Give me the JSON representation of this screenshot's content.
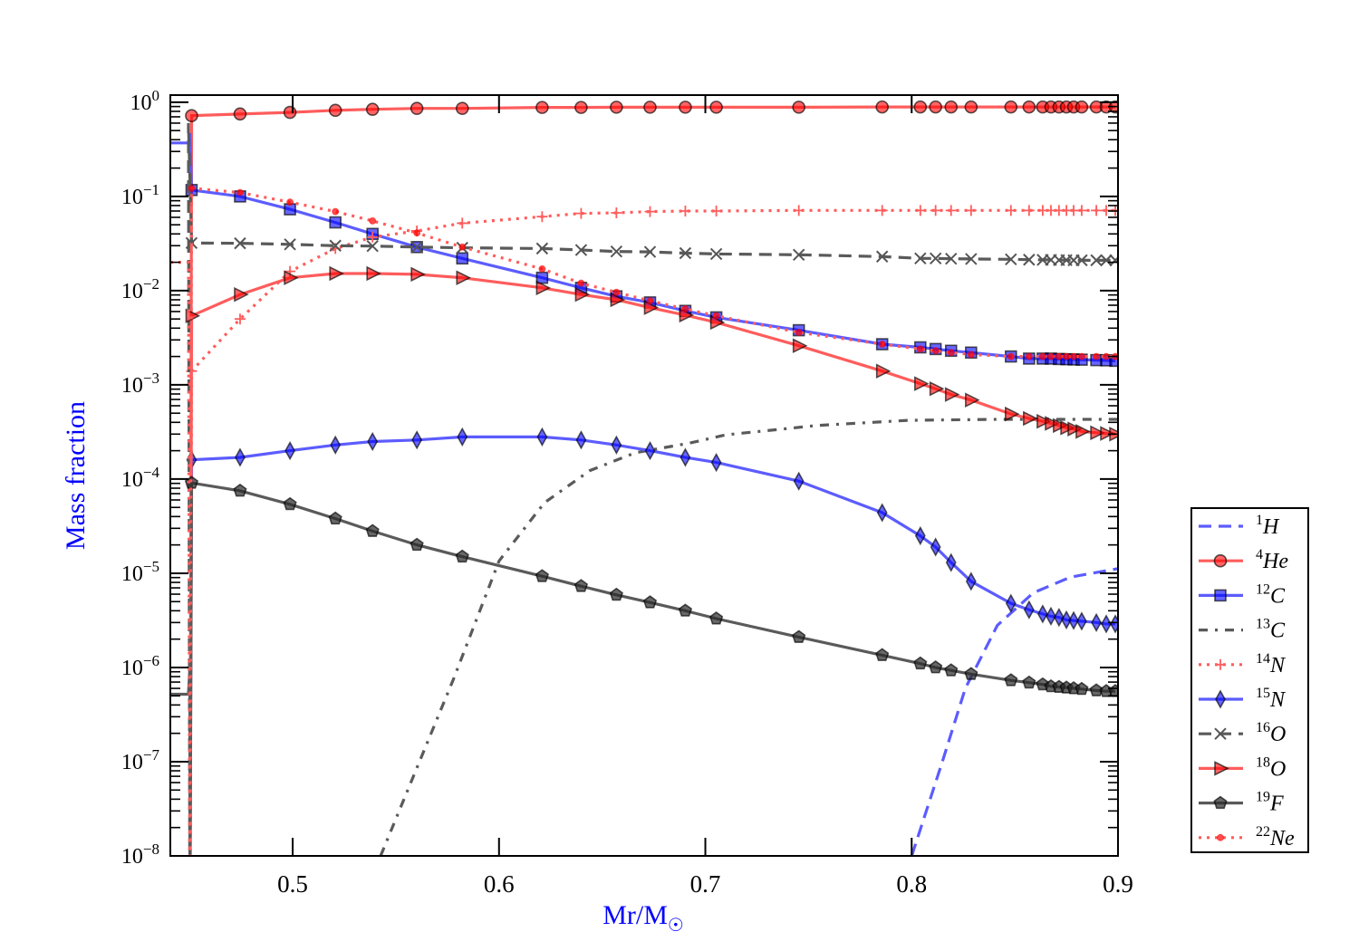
{
  "chart_data": {
    "type": "line",
    "title": "",
    "xlabel": "Mr/M",
    "xlabel_symbol": "☉",
    "ylabel": "Mass fraction",
    "xlim": [
      0.4407,
      0.9
    ],
    "ylim": [
      1e-08,
      1.19
    ],
    "yscale": "log",
    "grid": false,
    "legend_position": "outside-right-bottom",
    "x_ticks": [
      0.5,
      0.6,
      0.7,
      0.8,
      0.9
    ],
    "x_tick_labels": [
      "0.5",
      "0.6",
      "0.7",
      "0.8",
      "0.9"
    ],
    "y_ticks_exp": [
      0,
      -1,
      -2,
      -3,
      -4,
      -5,
      -6,
      -7,
      -8
    ],
    "y_tick_base": "10",
    "y_tick_exponents": [
      "0",
      "−1",
      "−2",
      "−3",
      "−4",
      "−5",
      "−6",
      "−7",
      "−8"
    ],
    "colors": {
      "red": "#ff5c5c",
      "blue": "#5c5cff",
      "grey": "#5a5a5a",
      "axis_label": "#0000ff"
    },
    "marker_x": [
      0.451,
      0.4745,
      0.4987,
      0.5207,
      0.5387,
      0.5602,
      0.5822,
      0.6209,
      0.6398,
      0.6569,
      0.6732,
      0.6903,
      0.7053,
      0.7453,
      0.7857,
      0.8042,
      0.8116,
      0.8191,
      0.8288,
      0.8481,
      0.8569,
      0.8635,
      0.8675,
      0.8714,
      0.875,
      0.8785,
      0.8824,
      0.8895,
      0.8943,
      0.8987
    ],
    "series": [
      {
        "name": "1H",
        "mass": "1",
        "element": "H",
        "color": "blue",
        "dash": "dashed",
        "marker": "none",
        "x": [
          0.8,
          0.815,
          0.826,
          0.8415,
          0.859,
          0.877,
          0.9
        ],
        "y": [
          1e-08,
          1.02e-07,
          6e-07,
          2.8e-06,
          6.2e-06,
          9.1e-06,
          1.12e-05
        ]
      },
      {
        "name": "4He",
        "mass": "4",
        "element": "He",
        "color": "red",
        "dash": "solid",
        "marker": "circle",
        "pre": [
          [
            0.4502,
            1e-09
          ]
        ],
        "y": [
          0.72,
          0.75,
          0.78,
          0.82,
          0.84,
          0.86,
          0.86,
          0.88,
          0.88,
          0.885,
          0.885,
          0.885,
          0.885,
          0.885,
          0.89,
          0.89,
          0.89,
          0.89,
          0.89,
          0.89,
          0.89,
          0.89,
          0.89,
          0.89,
          0.89,
          0.89,
          0.89,
          0.89,
          0.89,
          0.89
        ]
      },
      {
        "name": "12C",
        "mass": "12",
        "element": "C",
        "color": "blue",
        "dash": "solid",
        "marker": "square",
        "pre": [
          [
            0.4407,
            0.37
          ],
          [
            0.4495,
            0.37
          ],
          [
            0.4502,
            0.47
          ]
        ],
        "y": [
          0.117,
          0.1,
          0.073,
          0.053,
          0.04,
          0.029,
          0.022,
          0.0137,
          0.0107,
          0.0087,
          0.0075,
          0.0061,
          0.0052,
          0.0038,
          0.0027,
          0.0025,
          0.0024,
          0.0023,
          0.0022,
          0.002,
          0.0019,
          0.0019,
          0.0019,
          0.00188,
          0.00187,
          0.00186,
          0.00185,
          0.00183,
          0.00182,
          0.0018
        ]
      },
      {
        "name": "13C",
        "mass": "13",
        "element": "C",
        "color": "grey",
        "dash": "dashdot",
        "marker": "none",
        "x": [
          0.5426,
          0.578,
          0.6,
          0.622,
          0.644,
          0.666,
          0.692,
          0.71,
          0.754,
          0.798,
          0.842,
          0.9
        ],
        "y": [
          1e-08,
          7.6e-07,
          1.35e-05,
          5.6e-05,
          0.000123,
          0.00019,
          0.00024,
          0.000295,
          0.00037,
          0.00042,
          0.00043,
          0.00043
        ]
      },
      {
        "name": "14N",
        "mass": "14",
        "element": "N",
        "color": "red",
        "dash": "dotted",
        "marker": "plus",
        "pre": [
          [
            0.4502,
            1e-09
          ]
        ],
        "y": [
          0.0014,
          0.005,
          0.016,
          0.028,
          0.037,
          0.043,
          0.052,
          0.061,
          0.066,
          0.067,
          0.069,
          0.07,
          0.07,
          0.071,
          0.071,
          0.071,
          0.071,
          0.071,
          0.071,
          0.071,
          0.071,
          0.071,
          0.071,
          0.071,
          0.071,
          0.071,
          0.071,
          0.071,
          0.071,
          0.071
        ]
      },
      {
        "name": "15N",
        "mass": "15",
        "element": "N",
        "color": "blue",
        "dash": "solid",
        "marker": "diamond",
        "pre": [
          [
            0.4502,
            1e-09
          ],
          [
            0.4505,
            1.8e-07
          ]
        ],
        "y": [
          0.00016,
          0.00017,
          0.0002,
          0.00023,
          0.00025,
          0.00026,
          0.00028,
          0.00028,
          0.00026,
          0.00023,
          0.0002,
          0.00017,
          0.00015,
          9.5e-05,
          4.4e-05,
          2.5e-05,
          1.9e-05,
          1.3e-05,
          8.2e-06,
          4.8e-06,
          4.1e-06,
          3.7e-06,
          3.5e-06,
          3.4e-06,
          3.2e-06,
          3.15e-06,
          3.1e-06,
          3e-06,
          2.9e-06,
          2.9e-06
        ]
      },
      {
        "name": "16O",
        "mass": "16",
        "element": "O",
        "color": "grey",
        "dash": "dashed",
        "marker": "x",
        "pre": [
          [
            0.4502,
            1e-09
          ],
          [
            0.4495,
            0.6
          ]
        ],
        "y": [
          0.032,
          0.0318,
          0.031,
          0.03,
          0.0297,
          0.029,
          0.0285,
          0.028,
          0.027,
          0.026,
          0.0258,
          0.025,
          0.0245,
          0.024,
          0.023,
          0.022,
          0.022,
          0.0218,
          0.0217,
          0.0215,
          0.0213,
          0.0212,
          0.0212,
          0.0211,
          0.0211,
          0.021,
          0.021,
          0.021,
          0.021,
          0.021
        ]
      },
      {
        "name": "18O",
        "mass": "18",
        "element": "O",
        "color": "red",
        "dash": "solid",
        "marker": "triangle-right",
        "pre": [
          [
            0.4502,
            1e-09
          ]
        ],
        "y": [
          0.0054,
          0.0091,
          0.0137,
          0.0152,
          0.0152,
          0.0149,
          0.0137,
          0.0107,
          0.0091,
          0.008,
          0.0066,
          0.0055,
          0.0046,
          0.0026,
          0.0014,
          0.00103,
          0.00091,
          0.00079,
          0.00069,
          0.00049,
          0.00044,
          0.00041,
          0.00039,
          0.00037,
          0.00035,
          0.00034,
          0.00032,
          0.00031,
          0.000305,
          0.0003
        ]
      },
      {
        "name": "19F",
        "mass": "19",
        "element": "F",
        "color": "grey",
        "dash": "solid",
        "marker": "pentagon",
        "pre": [
          [
            0.4407,
            5.2e-07
          ],
          [
            0.4495,
            5.2e-07
          ],
          [
            0.4502,
            1e-06
          ],
          [
            0.4502,
            1e-09
          ]
        ],
        "y": [
          9.1e-05,
          7.5e-05,
          5.4e-05,
          3.8e-05,
          2.8e-05,
          2e-05,
          1.5e-05,
          9.3e-06,
          7.3e-06,
          5.9e-06,
          4.9e-06,
          4e-06,
          3.3e-06,
          2.1e-06,
          1.35e-06,
          1.1e-06,
          1e-06,
          9.3e-07,
          8.5e-07,
          7.3e-07,
          6.9e-07,
          6.6e-07,
          6.3e-07,
          6.2e-07,
          6.1e-07,
          6e-07,
          5.9e-07,
          5.7e-07,
          5.6e-07,
          5.6e-07
        ]
      },
      {
        "name": "22Ne",
        "mass": "22",
        "element": "Ne",
        "color": "red",
        "dash": "dotted",
        "marker": "dot",
        "pre": [
          [
            0.4407,
            0.02
          ],
          [
            0.4495,
            0.02
          ],
          [
            0.4502,
            1e-09
          ]
        ],
        "y": [
          0.122,
          0.11,
          0.087,
          0.069,
          0.055,
          0.041,
          0.029,
          0.017,
          0.012,
          0.0096,
          0.0078,
          0.0064,
          0.0054,
          0.0036,
          0.0027,
          0.0024,
          0.0023,
          0.0022,
          0.0021,
          0.002,
          0.002,
          0.002,
          0.002,
          0.002,
          0.002,
          0.002,
          0.002,
          0.002,
          0.002,
          0.002
        ]
      }
    ]
  }
}
